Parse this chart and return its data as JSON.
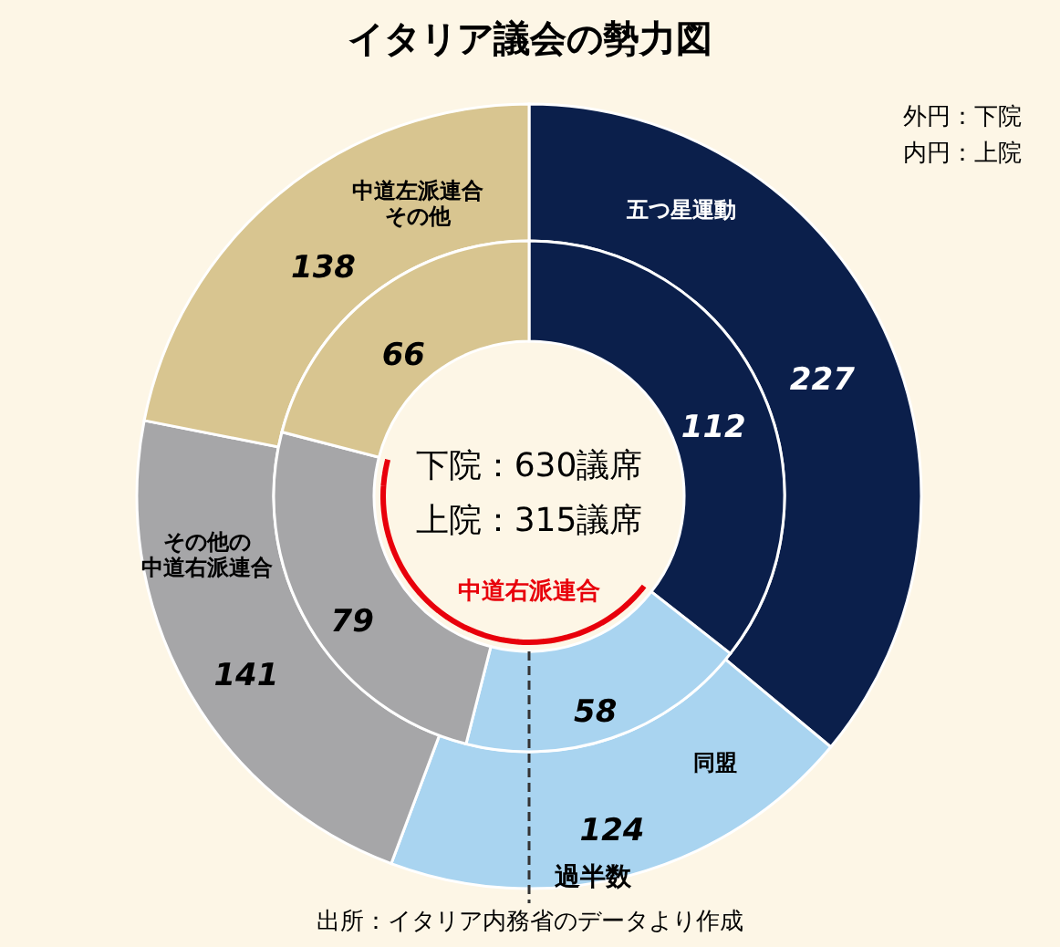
{
  "chart_data": {
    "type": "donut",
    "title": "イタリア議会の勢力図",
    "categories": [
      "五つ星運動",
      "同盟",
      "その他の中道右派連合",
      "中道左派連合その他"
    ],
    "colors": [
      "#0b1f4b",
      "#a9d4f0",
      "#a6a6a8",
      "#d8c590"
    ],
    "series": [
      {
        "values": [
          227,
          124,
          141,
          138
        ]
      },
      {
        "values": [
          112,
          58,
          79,
          66
        ]
      }
    ],
    "data_labels": true,
    "annotations": [
      "外円：下院",
      "内円：上院",
      "下院：630議席",
      "上院：315議席",
      "中道右派連合",
      "過半数",
      "出所：イタリア内務省のデータより作成"
    ]
  }
}
